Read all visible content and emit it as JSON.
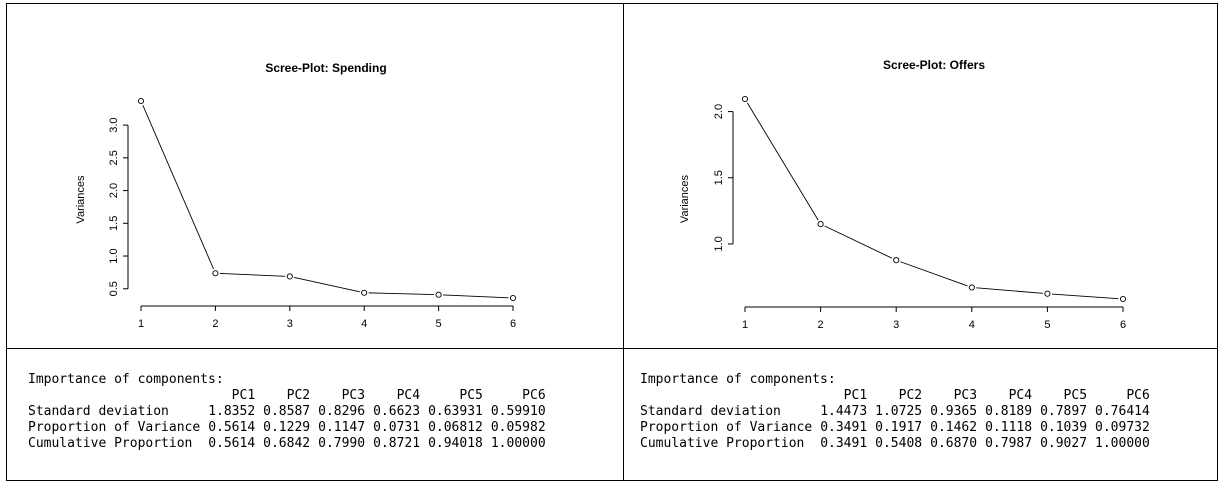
{
  "chart_data": [
    {
      "type": "line",
      "title": "Scree-Plot: Spending",
      "ylabel": "Variances",
      "xlabel": "",
      "x": [
        1,
        2,
        3,
        4,
        5,
        6
      ],
      "values": [
        3.368,
        0.737,
        0.688,
        0.439,
        0.409,
        0.359
      ],
      "xticks": [
        "1",
        "2",
        "3",
        "4",
        "5",
        "6"
      ],
      "yticks": [
        0.5,
        1.0,
        1.5,
        2.0,
        2.5,
        3.0
      ],
      "ytick_labels": [
        "0.5",
        "1.0",
        "1.5",
        "2.0",
        "2.5",
        "3.0"
      ],
      "ylim": [
        0.359,
        3.368
      ],
      "grid": false,
      "marker": "open-circle"
    },
    {
      "type": "line",
      "title": "Scree-Plot: Offers",
      "ylabel": "Variances",
      "xlabel": "",
      "x": [
        1,
        2,
        3,
        4,
        5,
        6
      ],
      "values": [
        2.095,
        1.15,
        0.877,
        0.671,
        0.624,
        0.584
      ],
      "xticks": [
        "1",
        "2",
        "3",
        "4",
        "5",
        "6"
      ],
      "yticks": [
        1.0,
        1.5,
        2.0
      ],
      "ytick_labels": [
        "1.0",
        "1.5",
        "2.0"
      ],
      "ylim": [
        0.584,
        2.095
      ],
      "grid": false,
      "marker": "open-circle"
    }
  ],
  "summaries": [
    {
      "heading": "Importance of components:",
      "columns": [
        "PC1",
        "PC2",
        "PC3",
        "PC4",
        "PC5",
        "PC6"
      ],
      "rows": [
        {
          "label": "Standard deviation",
          "values": [
            "1.8352",
            "0.8587",
            "0.8296",
            "0.6623",
            "0.63931",
            "0.59910"
          ]
        },
        {
          "label": "Proportion of Variance",
          "values": [
            "0.5614",
            "0.1229",
            "0.1147",
            "0.0731",
            "0.06812",
            "0.05982"
          ]
        },
        {
          "label": "Cumulative Proportion",
          "values": [
            "0.5614",
            "0.6842",
            "0.7990",
            "0.8721",
            "0.94018",
            "1.00000"
          ]
        }
      ]
    },
    {
      "heading": "Importance of components:",
      "columns": [
        "PC1",
        "PC2",
        "PC3",
        "PC4",
        "PC5",
        "PC6"
      ],
      "rows": [
        {
          "label": "Standard deviation",
          "values": [
            "1.4473",
            "1.0725",
            "0.9365",
            "0.8189",
            "0.7897",
            "0.76414"
          ]
        },
        {
          "label": "Proportion of Variance",
          "values": [
            "0.3491",
            "0.1917",
            "0.1462",
            "0.1118",
            "0.1039",
            "0.09732"
          ]
        },
        {
          "label": "Cumulative Proportion",
          "values": [
            "0.3491",
            "0.5408",
            "0.6870",
            "0.7987",
            "0.9027",
            "1.00000"
          ]
        }
      ]
    }
  ]
}
